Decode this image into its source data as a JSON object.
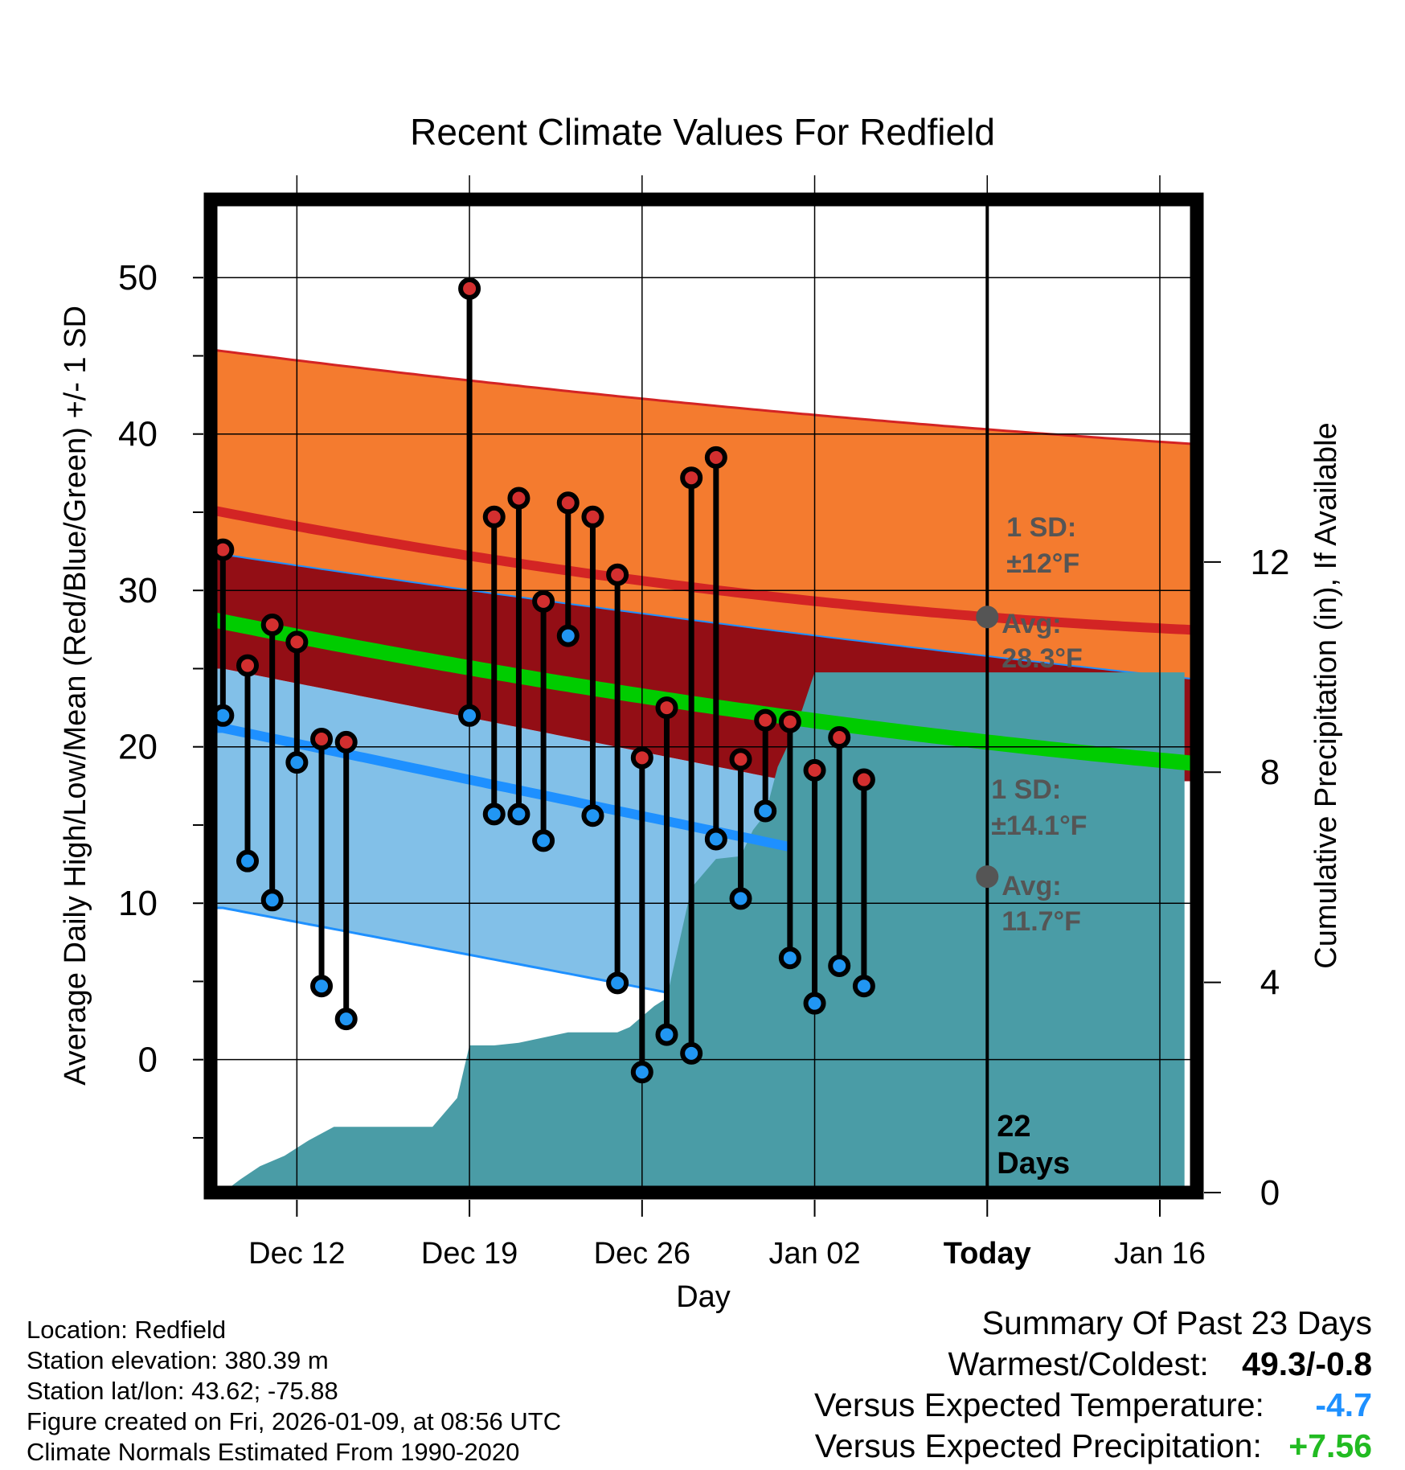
{
  "chart_data": {
    "type": "line",
    "title": "Recent Climate Values For Redfield",
    "xlabel": "Day",
    "ylabel_left": "Average Daily High/Low/Mean (Red/Blue/Green) +/- 1 SD",
    "ylabel_right": "Cumulative Precipitation (in), If Available",
    "x_range_days": [
      -0.5,
      39.5
    ],
    "ylim_left": [
      -8.5,
      55
    ],
    "ylim_right": [
      0,
      18.9
    ],
    "x_ticks": [
      {
        "day": 3,
        "label": "Dec 12"
      },
      {
        "day": 10,
        "label": "Dec 19"
      },
      {
        "day": 17,
        "label": "Dec 26"
      },
      {
        "day": 24,
        "label": "Jan 02"
      },
      {
        "day": 31,
        "label": "Today"
      },
      {
        "day": 38,
        "label": "Jan 16"
      }
    ],
    "y_ticks_left": [
      "0",
      "10",
      "20",
      "30",
      "40",
      "50"
    ],
    "y_ticks_right": [
      "0",
      "4",
      "8",
      "12"
    ],
    "normals_days": [
      0,
      31,
      39
    ],
    "normal_high": [
      35.0,
      28.3,
      27.5
    ],
    "normal_high_upper": [
      45.3,
      40.3,
      39.4
    ],
    "normal_high_lower": [
      32.3,
      25.8,
      24.4
    ],
    "normal_mean": [
      28.0,
      20.3,
      19.0
    ],
    "normal_low_days": [
      0,
      23
    ],
    "normal_low": [
      21.2,
      13.6
    ],
    "normal_low_upper": [
      25.0,
      17.8
    ],
    "normal_low_lower": [
      9.7,
      2.8
    ],
    "observed": {
      "days": [
        0,
        1,
        2,
        3,
        4,
        5,
        6,
        7,
        8,
        9,
        10,
        11,
        12,
        13,
        14,
        15,
        16,
        17,
        18,
        19,
        20,
        21,
        22,
        23,
        24,
        25,
        26
      ],
      "high": [
        32.6,
        25.2,
        27.8,
        26.7,
        20.5,
        20.3,
        null,
        null,
        null,
        null,
        49.3,
        34.7,
        35.9,
        29.3,
        35.6,
        34.7,
        31.0,
        19.3,
        22.5,
        37.2,
        38.5,
        19.2,
        21.7,
        21.6,
        18.5,
        20.6,
        17.9
      ],
      "low": [
        22.0,
        12.7,
        10.2,
        19.0,
        4.7,
        2.6,
        null,
        null,
        null,
        null,
        22.0,
        15.7,
        15.7,
        14.0,
        27.1,
        15.6,
        4.9,
        -0.8,
        1.6,
        0.4,
        14.1,
        10.3,
        15.9,
        6.5,
        3.6,
        6.0,
        4.7
      ]
    },
    "precipitation": {
      "days": [
        0,
        0.7,
        1.5,
        2,
        2.5,
        3.5,
        4.5,
        5.5,
        6.5,
        7.5,
        8.5,
        9.5,
        10,
        11,
        12,
        13,
        14,
        15,
        16,
        16.5,
        17.5,
        18,
        19,
        20,
        21,
        21.5,
        22,
        22.5,
        23,
        23.5,
        24,
        25,
        26,
        27,
        28,
        29,
        30,
        31,
        39
      ],
      "cumulative": [
        0,
        0.25,
        0.5,
        0.6,
        0.7,
        1.0,
        1.25,
        1.25,
        1.25,
        1.25,
        1.25,
        1.8,
        2.8,
        2.8,
        2.85,
        2.95,
        3.05,
        3.05,
        3.05,
        3.15,
        3.55,
        3.7,
        5.8,
        6.35,
        6.4,
        6.9,
        7.2,
        8.1,
        8.6,
        9.2,
        9.9,
        9.9,
        9.9,
        9.9,
        9.9,
        9.9,
        9.9,
        9.9,
        9.9
      ]
    },
    "today_day": 31,
    "today_label": "22",
    "today_label_2": "Days",
    "annotations": {
      "high_sd_label": "1 SD:",
      "high_sd_value": "±12°F",
      "high_avg_label": "Avg:",
      "high_avg_value": "28.3°F",
      "high_avg": 28.3,
      "low_sd_label": "1 SD:",
      "low_sd_value": "±14.1°F",
      "low_avg_label": "Avg:",
      "low_avg_value": "11.7°F",
      "low_avg": 11.7
    },
    "colors": {
      "high_band": "#f47b2f",
      "high_line": "#d32424",
      "mid_band": "#930e15",
      "mean_line": "#00cc00",
      "low_band": "#82c0e8",
      "low_line": "#1e90ff",
      "precip": "#4a9ca6",
      "high_marker": "#d32f2f",
      "low_marker": "#2196f3",
      "annotation": "#555555"
    }
  },
  "info": {
    "location": "Location: Redfield",
    "elevation": "Station elevation: 380.39 m",
    "latlon": "Station lat/lon: 43.62; -75.88",
    "created": "Figure created on Fri, 2026-01-09, at 08:56 UTC",
    "normals": "Climate Normals Estimated From 1990-2020"
  },
  "summary": {
    "title": "Summary Of Past 23 Days",
    "warmest_label": "Warmest/Coldest:",
    "warmest_value": "49.3/-0.8",
    "temp_label": "Versus Expected Temperature:",
    "temp_value": "-4.7",
    "temp_color": "#1e90ff",
    "precip_label": "Versus Expected Precipitation:",
    "precip_value": "+7.56",
    "precip_color": "#22bb22"
  }
}
